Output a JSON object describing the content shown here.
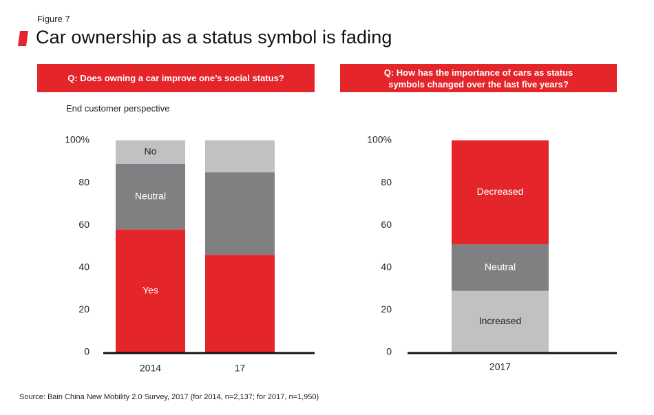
{
  "figure_label": "Figure 7",
  "title": "Car ownership as a status symbol is fading",
  "source": "Source: Bain China New Mobility 2.0 Survey, 2017 (for 2014, n=2,137; for 2017, n=1,950)",
  "colors": {
    "accent": "#e42529",
    "dark_gray": "#808083",
    "light_gray": "#c1c1c4",
    "axis": "#111111"
  },
  "chart_data": [
    {
      "type": "bar",
      "stacked": true,
      "question": "Q:  Does owning a car improve one’s social status?",
      "subtitle": "End customer perspective",
      "categories": [
        "2014",
        "17"
      ],
      "ylim": [
        0,
        100
      ],
      "yticks": [
        0,
        20,
        40,
        60,
        80,
        100
      ],
      "ytick_labels": [
        "0",
        "20",
        "40",
        "60",
        "80",
        "100%"
      ],
      "series": [
        {
          "name": "Yes",
          "color": "#e42529",
          "label_color": "#ffffff",
          "values": [
            58,
            46
          ],
          "show_label": [
            true,
            false
          ]
        },
        {
          "name": "Neutral",
          "color": "#808083",
          "label_color": "#ffffff",
          "values": [
            31,
            39
          ],
          "show_label": [
            true,
            false
          ]
        },
        {
          "name": "No",
          "color": "#c1c1c4",
          "label_color": "#222222",
          "values": [
            11,
            15
          ],
          "show_label": [
            true,
            false
          ]
        }
      ]
    },
    {
      "type": "bar",
      "stacked": true,
      "question": "Q:  How has the importance of cars as status symbols changed over the last five years?",
      "categories": [
        "2017"
      ],
      "ylim": [
        0,
        100
      ],
      "yticks": [
        0,
        20,
        40,
        60,
        80,
        100
      ],
      "ytick_labels": [
        "0",
        "20",
        "40",
        "60",
        "80",
        "100%"
      ],
      "series": [
        {
          "name": "Increased",
          "color": "#c1c1c4",
          "label_color": "#222222",
          "values": [
            29
          ],
          "show_label": [
            true
          ]
        },
        {
          "name": "Neutral",
          "color": "#808083",
          "label_color": "#ffffff",
          "values": [
            22
          ],
          "show_label": [
            true
          ]
        },
        {
          "name": "Decreased",
          "color": "#e42529",
          "label_color": "#ffffff",
          "values": [
            49
          ],
          "show_label": [
            true
          ]
        }
      ]
    }
  ]
}
